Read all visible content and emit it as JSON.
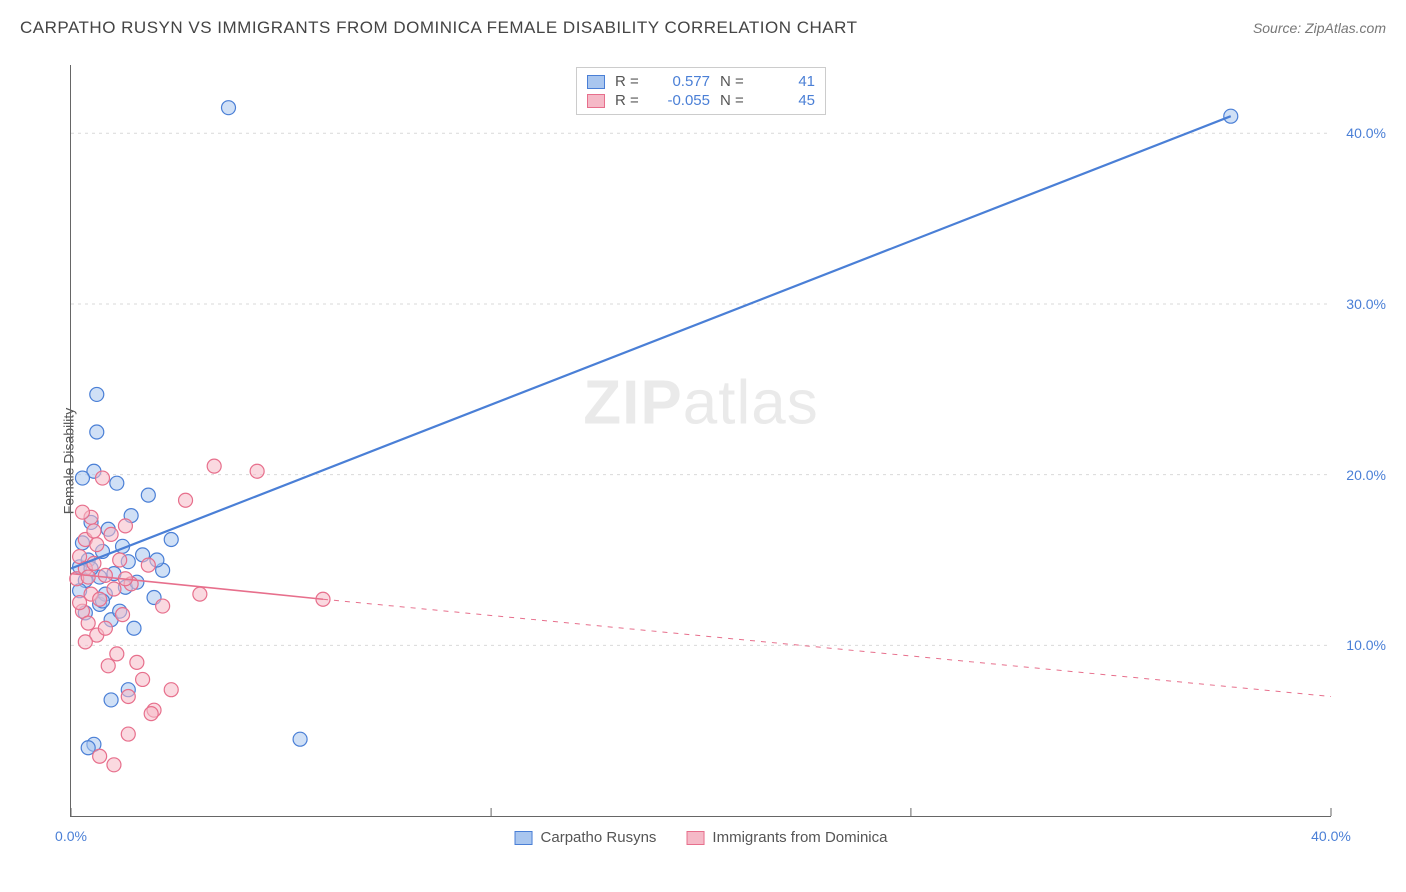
{
  "title": "CARPATHO RUSYN VS IMMIGRANTS FROM DOMINICA FEMALE DISABILITY CORRELATION CHART",
  "source": "Source: ZipAtlas.com",
  "y_axis_label": "Female Disability",
  "watermark": {
    "bold": "ZIP",
    "rest": "atlas"
  },
  "chart": {
    "type": "scatter",
    "background_color": "#ffffff",
    "grid_color": "#d9d9d9",
    "axis_color": "#666666",
    "xlim": [
      0,
      44
    ],
    "ylim": [
      0,
      44
    ],
    "x_ticks": [
      {
        "pos": 0,
        "label": "0.0%"
      },
      {
        "pos": 44,
        "label": "40.0%"
      }
    ],
    "y_ticks": [
      {
        "pos": 10,
        "label": "10.0%"
      },
      {
        "pos": 20,
        "label": "20.0%"
      },
      {
        "pos": 30,
        "label": "30.0%"
      },
      {
        "pos": 40,
        "label": "40.0%"
      }
    ],
    "x_tick_major_positions": [
      0,
      14.67,
      29.33,
      44
    ],
    "gridlines_y": [
      10,
      20,
      30,
      40
    ],
    "marker_radius": 7,
    "marker_opacity": 0.55,
    "series": [
      {
        "id": "carpatho",
        "name": "Carpatho Rusyns",
        "color_fill": "#a9c6ef",
        "color_stroke": "#4a7fd6",
        "r_value": "0.577",
        "n_value": "41",
        "points": [
          [
            0.3,
            14.6
          ],
          [
            0.4,
            16.0
          ],
          [
            0.5,
            11.9
          ],
          [
            0.5,
            13.8
          ],
          [
            0.6,
            15.0
          ],
          [
            0.7,
            17.2
          ],
          [
            0.8,
            20.2
          ],
          [
            0.9,
            22.5
          ],
          [
            0.9,
            24.7
          ],
          [
            1.0,
            12.4
          ],
          [
            1.0,
            14.0
          ],
          [
            1.1,
            15.5
          ],
          [
            1.2,
            13.0
          ],
          [
            1.3,
            16.8
          ],
          [
            1.4,
            11.5
          ],
          [
            1.5,
            14.2
          ],
          [
            1.6,
            19.5
          ],
          [
            1.7,
            12.0
          ],
          [
            1.8,
            15.8
          ],
          [
            1.9,
            13.4
          ],
          [
            2.0,
            14.9
          ],
          [
            2.1,
            17.6
          ],
          [
            2.2,
            11.0
          ],
          [
            2.3,
            13.7
          ],
          [
            2.5,
            15.3
          ],
          [
            2.7,
            18.8
          ],
          [
            2.9,
            12.8
          ],
          [
            3.2,
            14.4
          ],
          [
            3.5,
            16.2
          ],
          [
            0.8,
            4.2
          ],
          [
            0.6,
            4.0
          ],
          [
            1.4,
            6.8
          ],
          [
            2.0,
            7.4
          ],
          [
            8.0,
            4.5
          ],
          [
            5.5,
            41.5
          ],
          [
            40.5,
            41.0
          ],
          [
            0.4,
            19.8
          ],
          [
            0.7,
            14.5
          ],
          [
            1.1,
            12.6
          ],
          [
            0.3,
            13.2
          ],
          [
            3.0,
            15.0
          ]
        ],
        "trend": {
          "x1": 0,
          "y1": 14.5,
          "x2": 40.5,
          "y2": 41.0,
          "style": "solid",
          "width": 2.2,
          "extend_dash": false
        }
      },
      {
        "id": "dominica",
        "name": "Immigrants from Dominica",
        "color_fill": "#f5b9c7",
        "color_stroke": "#e76f8c",
        "r_value": "-0.055",
        "n_value": "45",
        "points": [
          [
            0.2,
            13.9
          ],
          [
            0.3,
            15.2
          ],
          [
            0.4,
            12.0
          ],
          [
            0.5,
            14.5
          ],
          [
            0.5,
            16.2
          ],
          [
            0.6,
            11.3
          ],
          [
            0.7,
            13.0
          ],
          [
            0.7,
            17.5
          ],
          [
            0.8,
            14.8
          ],
          [
            0.9,
            10.6
          ],
          [
            0.9,
            15.9
          ],
          [
            1.0,
            12.7
          ],
          [
            1.1,
            19.8
          ],
          [
            1.2,
            14.1
          ],
          [
            1.3,
            8.8
          ],
          [
            1.4,
            16.5
          ],
          [
            1.5,
            13.3
          ],
          [
            1.6,
            9.5
          ],
          [
            1.7,
            15.0
          ],
          [
            1.8,
            11.8
          ],
          [
            1.9,
            17.0
          ],
          [
            2.0,
            7.0
          ],
          [
            2.1,
            13.6
          ],
          [
            2.3,
            9.0
          ],
          [
            2.5,
            8.0
          ],
          [
            2.7,
            14.7
          ],
          [
            2.9,
            6.2
          ],
          [
            3.2,
            12.3
          ],
          [
            3.5,
            7.4
          ],
          [
            4.0,
            18.5
          ],
          [
            4.5,
            13.0
          ],
          [
            5.0,
            20.5
          ],
          [
            6.5,
            20.2
          ],
          [
            8.8,
            12.7
          ],
          [
            1.0,
            3.5
          ],
          [
            1.5,
            3.0
          ],
          [
            2.0,
            4.8
          ],
          [
            2.8,
            6.0
          ],
          [
            0.4,
            17.8
          ],
          [
            0.6,
            14.0
          ],
          [
            0.8,
            16.7
          ],
          [
            1.2,
            11.0
          ],
          [
            1.9,
            13.9
          ],
          [
            0.3,
            12.5
          ],
          [
            0.5,
            10.2
          ]
        ],
        "trend": {
          "x1": 0,
          "y1": 14.2,
          "x2": 8.8,
          "y2": 12.7,
          "style": "solid",
          "width": 1.6,
          "extend_dash": true,
          "dash_to_x": 44,
          "dash_to_y": 7.0
        }
      }
    ],
    "legend_top": {
      "r_label": "R =",
      "n_label": "N ="
    },
    "legend_bottom": [
      {
        "series": "carpatho"
      },
      {
        "series": "dominica"
      }
    ]
  }
}
